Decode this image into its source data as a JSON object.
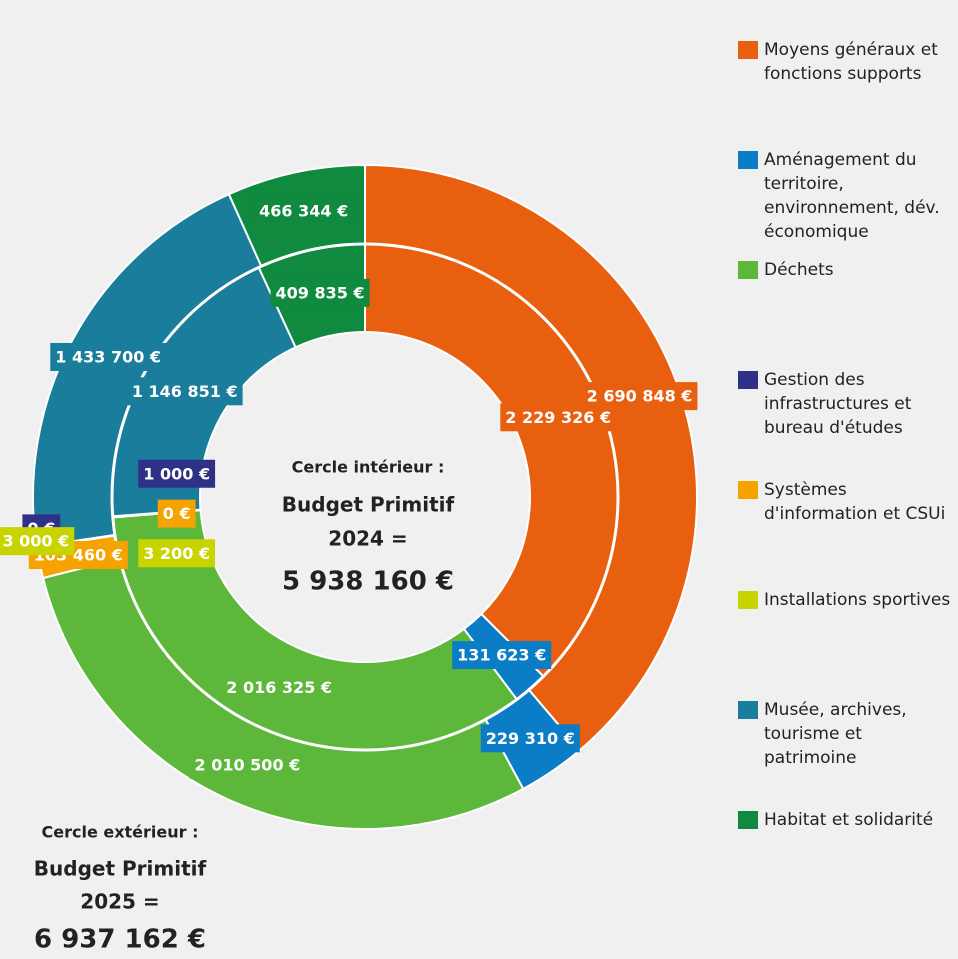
{
  "chart_data": {
    "type": "double-donut",
    "categories": [
      "Moyens généraux et fonctions supports",
      "Aménagement du territoire, environnement, dév. économique",
      "Déchets",
      "Gestion des infrastructures et bureau d'études",
      "Systèmes d'information et CSUi",
      "Installations sportives",
      "Musée, archives, tourisme et patrimoine",
      "Habitat et solidarité"
    ],
    "colors": [
      "#e8600f",
      "#0a7dc6",
      "#5cb73a",
      "#2e3186",
      "#f5a300",
      "#c8d400",
      "#1a7d9b",
      "#0f8a3e"
    ],
    "series": [
      {
        "ring": "inner",
        "values": [
          2229326,
          131623,
          2016325,
          1000,
          0,
          3200,
          1146851,
          409835
        ],
        "value_labels": [
          "2 229 326 €",
          "131 623 €",
          "2 016 325 €",
          "1 000 €",
          "0 €",
          "3 200 €",
          "1 146 851 €",
          "409 835 €"
        ]
      },
      {
        "ring": "outer",
        "values": [
          2690848,
          229310,
          2010500,
          0,
          103460,
          3000,
          1433700,
          466344
        ],
        "value_labels": [
          "2 690 848 €",
          "229 310 €",
          "2 010 500 €",
          "0 €",
          "103 460 €",
          "3 000 €",
          "1 433 700 €",
          "466 344 €"
        ]
      }
    ],
    "annotations": {
      "inner": [
        "Cercle intérieur :",
        "Budget Primitif",
        "2024 =",
        "5 938 160 €"
      ],
      "outer": [
        "Cercle extérieur :",
        "Budget Primitif",
        "2025 =",
        "6 937 162 €"
      ]
    },
    "legend": "right"
  }
}
